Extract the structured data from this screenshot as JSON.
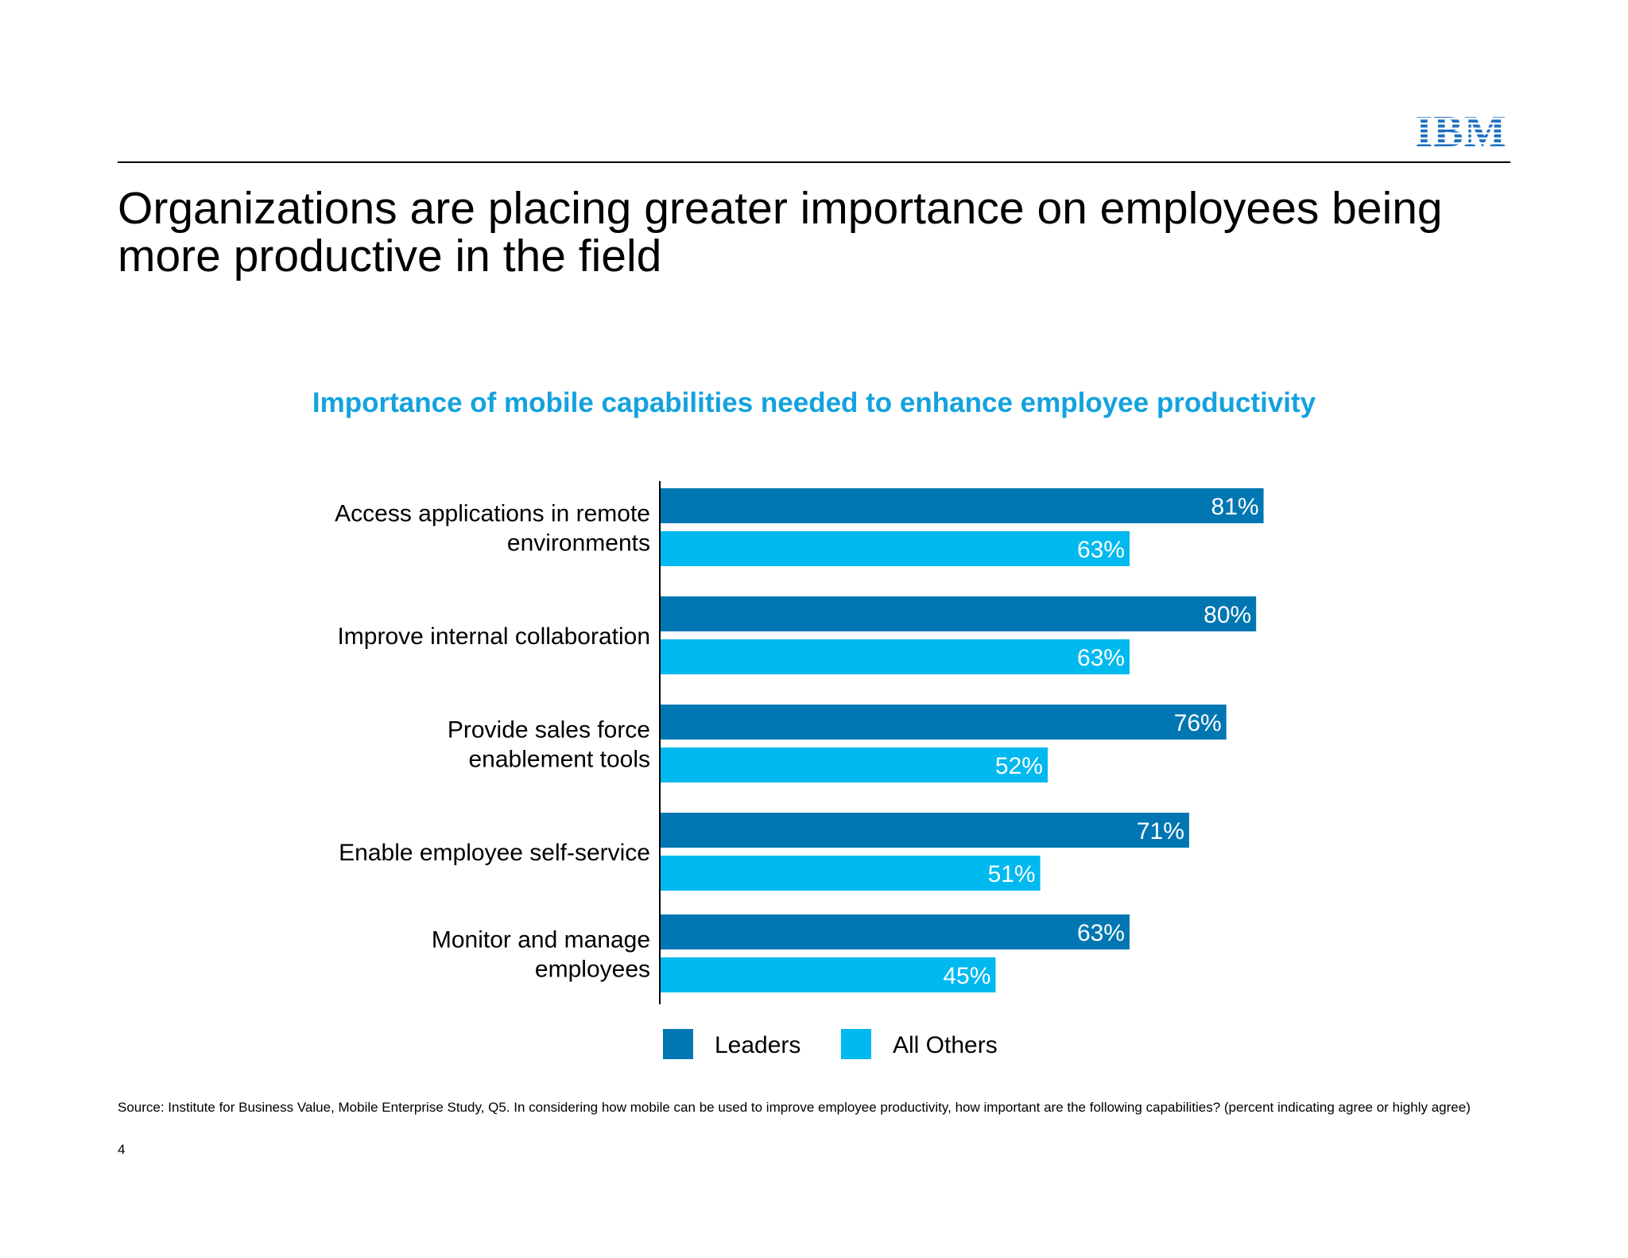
{
  "header": {
    "logo_text": "IBM",
    "title": "Organizations are placing greater importance on employees being more productive in the field"
  },
  "chart_data": {
    "type": "bar",
    "orientation": "horizontal",
    "title": "Importance of mobile capabilities needed to enhance employee productivity",
    "categories": [
      [
        "Access applications in remote",
        "environments"
      ],
      [
        "Improve internal collaboration"
      ],
      [
        "Provide sales force",
        "enablement tools"
      ],
      [
        "Enable employee self-service"
      ],
      [
        "Monitor and manage",
        "employees"
      ]
    ],
    "series": [
      {
        "name": "Leaders",
        "color": "#0077b3",
        "values": [
          81,
          80,
          76,
          71,
          63
        ]
      },
      {
        "name": "All Others",
        "color": "#00b9ef",
        "values": [
          63,
          63,
          52,
          51,
          45
        ]
      }
    ],
    "value_suffix": "%",
    "xlim": [
      0,
      100
    ],
    "grid": false,
    "legend": "bottom"
  },
  "footer": {
    "source": "Source: Institute for Business Value, Mobile Enterprise Study, Q5.  In considering how mobile can be used to improve employee productivity, how important are the following capabilities? (percent indicating agree or highly agree)",
    "page_number": "4"
  },
  "colors": {
    "brand": "#1f70c1",
    "chart_title": "#13a2dd"
  }
}
